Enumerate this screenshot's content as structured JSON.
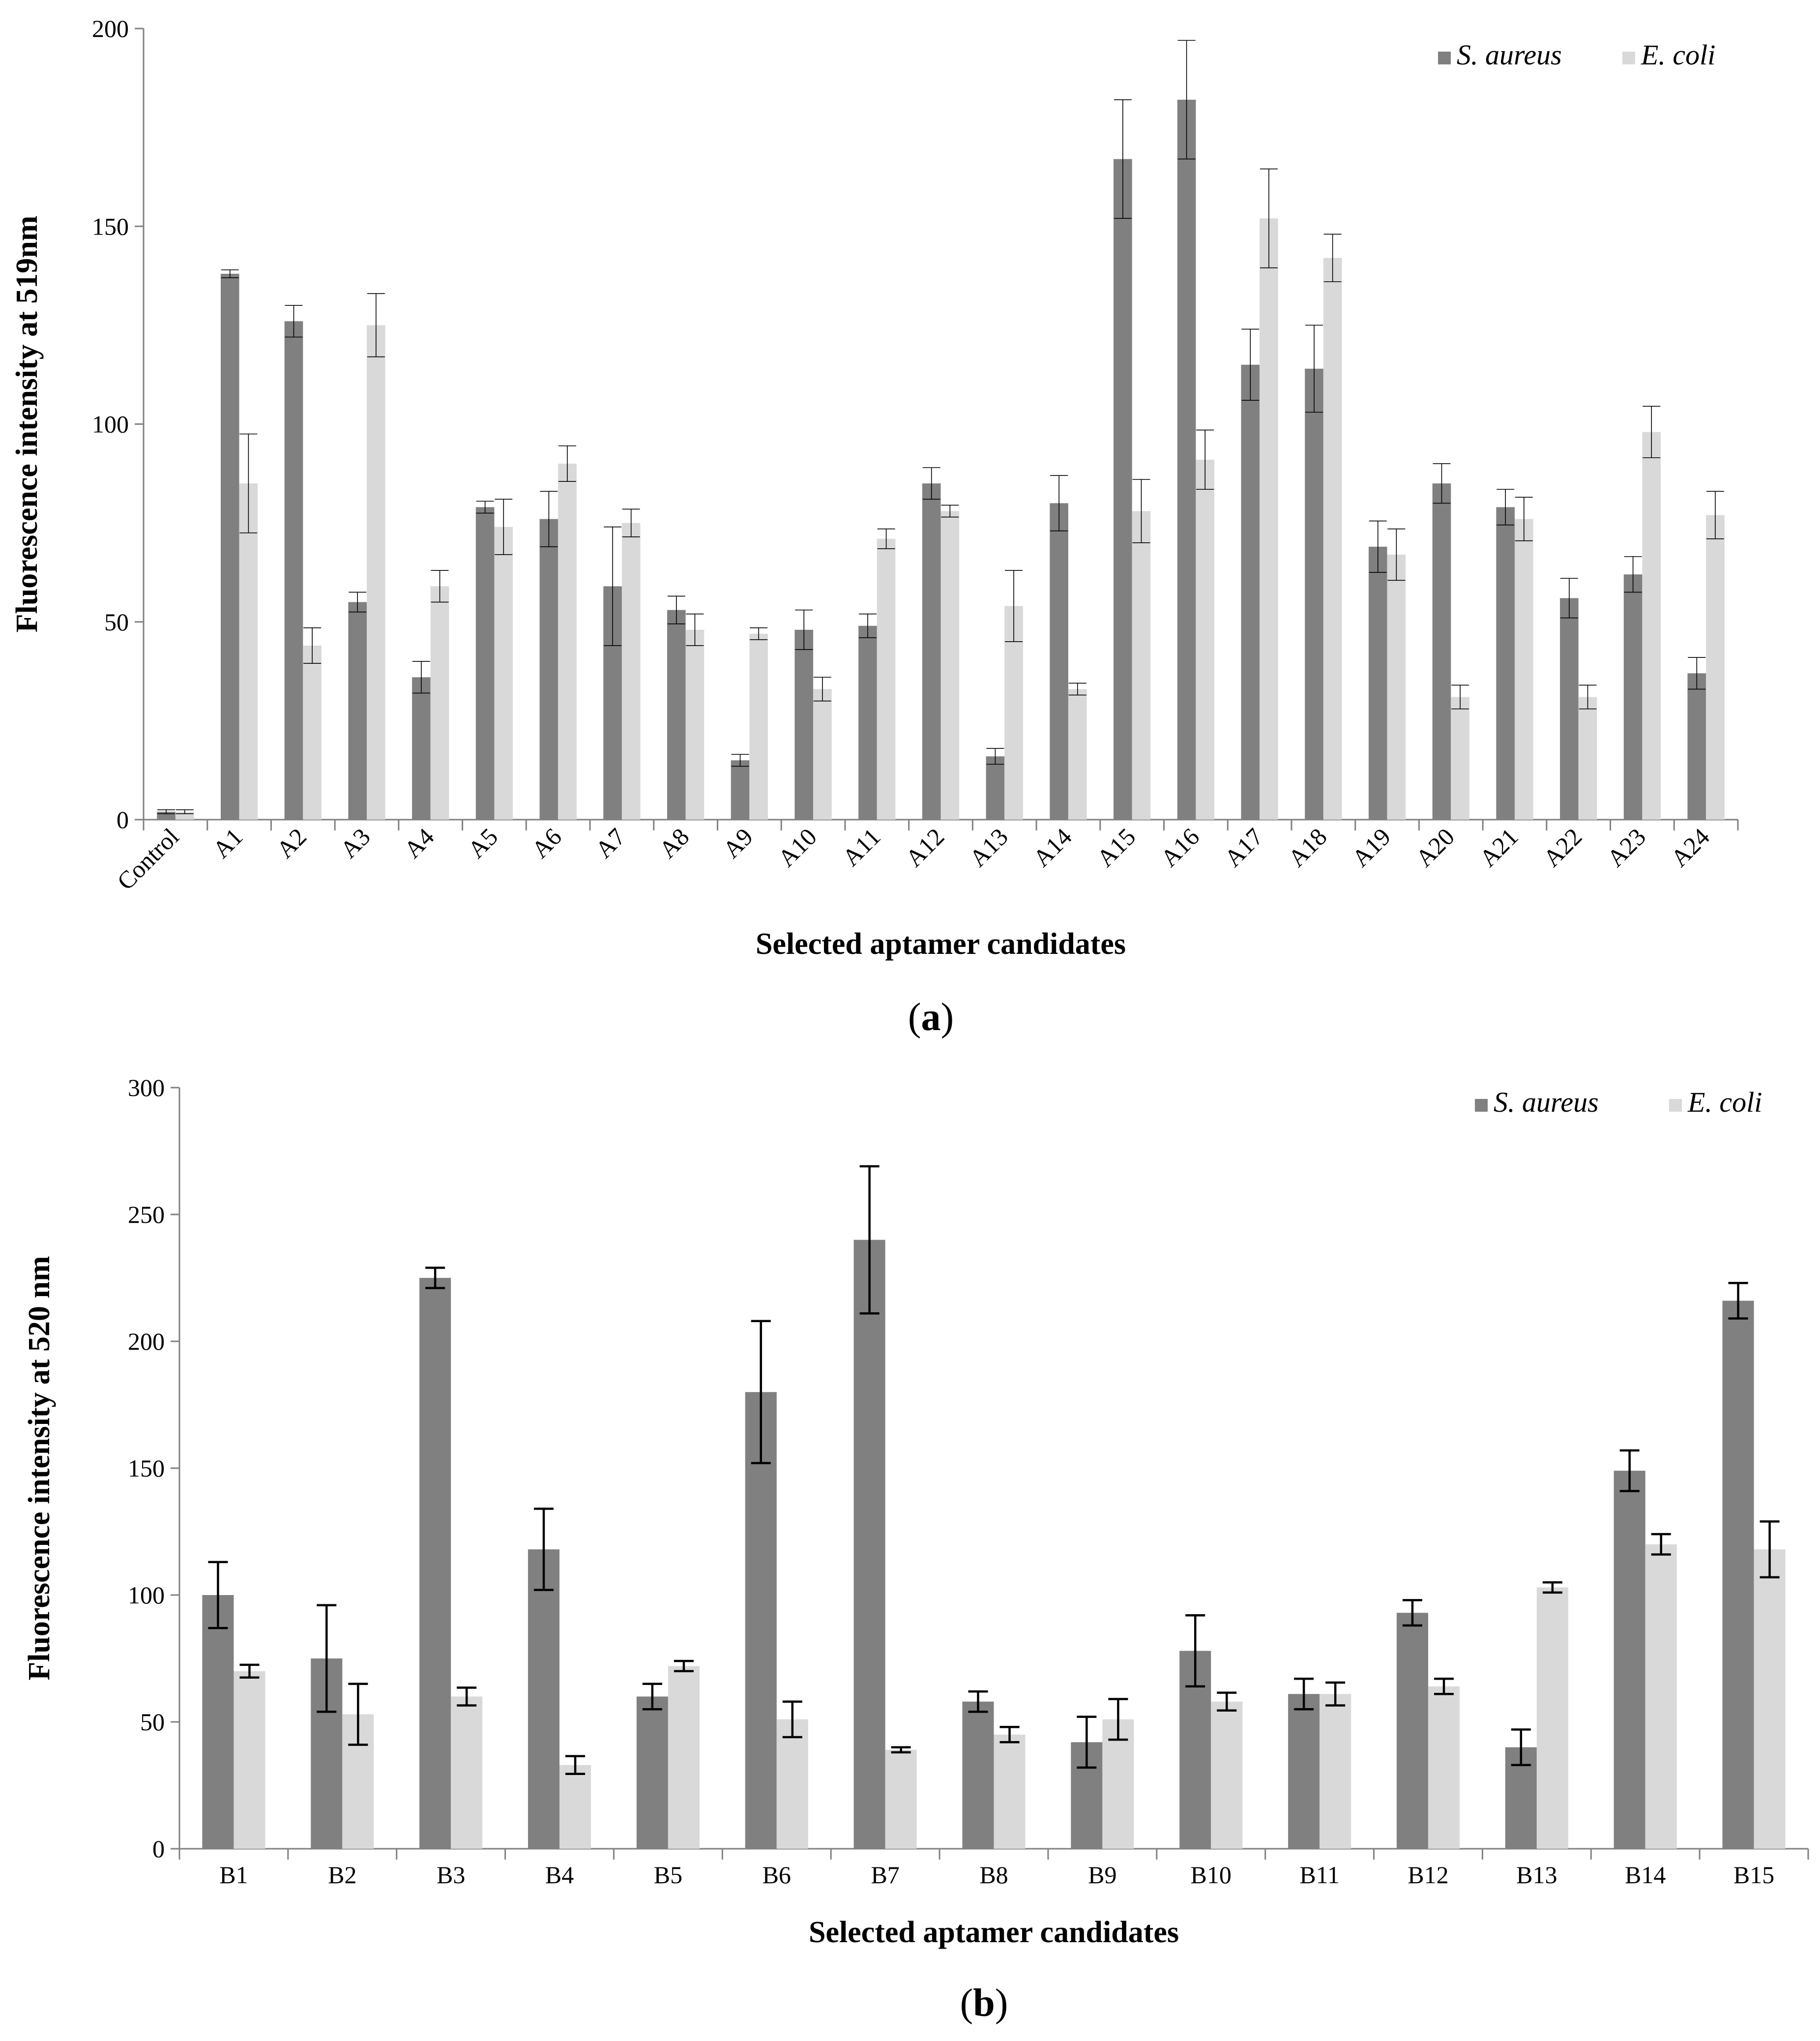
{
  "chart_data": [
    {
      "type": "bar",
      "panel_label": "(a)",
      "panel_letter": "a",
      "ylabel": "Fluorescence intensity at 519nm",
      "xlabel": "Selected aptamer candidates",
      "ylim": [
        0,
        200
      ],
      "yticks": [
        "0",
        "50",
        "100",
        "150",
        "200"
      ],
      "categories": [
        "Control",
        "A1",
        "A2",
        "A3",
        "A4",
        "A5",
        "A6",
        "A7",
        "A8",
        "A9",
        "A10",
        "A11",
        "A12",
        "A13",
        "A14",
        "A15",
        "A16",
        "A17",
        "A18",
        "A19",
        "A20",
        "A21",
        "A22",
        "A23",
        "A24"
      ],
      "legend_position": "top-right",
      "series": [
        {
          "name": "S. aureus",
          "color": "#808080",
          "values": [
            2,
            138,
            126,
            55,
            36,
            79,
            76,
            59,
            53,
            15,
            48,
            49,
            85,
            16,
            80,
            167,
            182,
            115,
            114,
            69,
            85,
            79,
            56,
            62,
            37
          ],
          "errors": [
            0.5,
            1,
            4,
            2.5,
            4,
            1.5,
            7,
            15,
            3.5,
            1.5,
            5,
            3,
            4,
            2,
            7,
            15,
            15,
            9,
            11,
            6.5,
            5,
            4.5,
            5,
            4.5,
            4
          ]
        },
        {
          "name": "E. coli",
          "color": "#d9d9d9",
          "values": [
            2,
            85,
            44,
            125,
            59,
            74,
            90,
            75,
            48,
            47,
            33,
            71,
            78,
            54,
            33,
            78,
            91,
            152,
            142,
            67,
            31,
            76,
            31,
            98,
            77
          ],
          "errors": [
            0.5,
            12.5,
            4.5,
            8,
            4,
            7,
            4.5,
            3.5,
            4,
            1.5,
            3,
            2.5,
            1.5,
            9,
            1.5,
            8,
            7.5,
            12.5,
            6,
            6.5,
            3,
            5.5,
            3,
            6.5,
            6
          ]
        }
      ]
    },
    {
      "type": "bar",
      "panel_label": "(b)",
      "panel_letter": "b",
      "ylabel": "Fluorescence intensity at 520 nm",
      "xlabel": "Selected aptamer candidates",
      "ylim": [
        0,
        300
      ],
      "yticks": [
        "0",
        "50",
        "100",
        "150",
        "200",
        "250",
        "300"
      ],
      "categories": [
        "B1",
        "B2",
        "B3",
        "B4",
        "B5",
        "B6",
        "B7",
        "B8",
        "B9",
        "B10",
        "B11",
        "B12",
        "B13",
        "B14",
        "B15"
      ],
      "legend_position": "top-right",
      "series": [
        {
          "name": "S. aureus",
          "color": "#808080",
          "values": [
            100,
            75,
            225,
            118,
            60,
            180,
            240,
            58,
            42,
            78,
            61,
            93,
            40,
            149,
            216
          ],
          "errors": [
            13,
            21,
            4,
            16,
            5,
            28,
            29,
            4,
            10,
            14,
            6,
            5,
            7,
            8,
            7
          ]
        },
        {
          "name": "E. coli",
          "color": "#d9d9d9",
          "values": [
            70,
            53,
            60,
            33,
            72,
            51,
            39,
            45,
            51,
            58,
            61,
            64,
            103,
            120,
            118
          ],
          "errors": [
            2.5,
            12,
            3.5,
            3.5,
            2,
            7,
            1,
            3,
            8,
            3.5,
            4.5,
            3,
            2,
            4,
            11
          ]
        }
      ]
    }
  ]
}
